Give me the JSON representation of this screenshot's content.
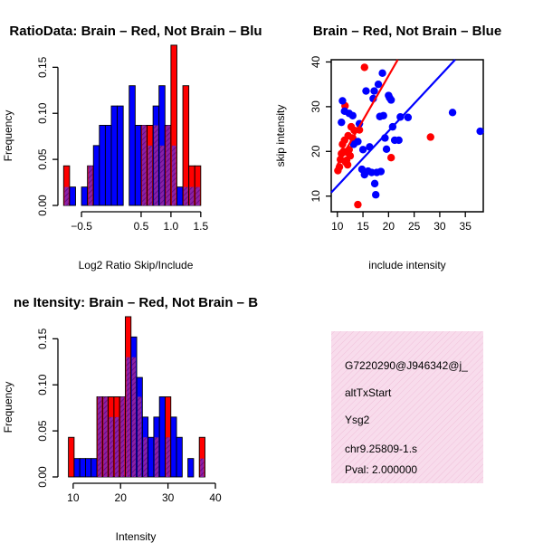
{
  "chart_data": [
    {
      "type": "bar",
      "subtype": "overlaid-histogram",
      "title": "RatioData: Brain – Red, Not Brain – Blu",
      "xlabel": "Log2 Ratio Skip/Include",
      "ylabel": "Frequency",
      "xlim": [
        -0.85,
        1.7
      ],
      "ylim": [
        0,
        0.17
      ],
      "x_ticks": [
        -0.5,
        0.5,
        1.0,
        1.5
      ],
      "x_tick_labels": [
        "−0.5",
        "0.5",
        "1.0",
        "1.5"
      ],
      "y_ticks": [
        0.0,
        0.05,
        0.1,
        0.15
      ],
      "y_tick_labels": [
        "0.00",
        "0.05",
        "0.10",
        "0.15"
      ],
      "bin_start": -0.8,
      "bin_width": 0.1,
      "series": [
        {
          "name": "Brain",
          "color": "#ff0000",
          "values": [
            0.043,
            0.0,
            0.0,
            0.0,
            0.043,
            0.0,
            0.0,
            0.0,
            0.0,
            0.0,
            0.0,
            0.0,
            0.0,
            0.087,
            0.087,
            0.087,
            0.065,
            0.087,
            0.174,
            0.0,
            0.13,
            0.043,
            0.043
          ]
        },
        {
          "name": "Not Brain",
          "color": "#0000ff",
          "values": [
            0.02,
            0.02,
            0.0,
            0.02,
            0.043,
            0.065,
            0.087,
            0.087,
            0.108,
            0.108,
            0.0,
            0.13,
            0.087,
            0.087,
            0.065,
            0.108,
            0.13,
            0.087,
            0.065,
            0.02,
            0.02,
            0.02,
            0.02
          ]
        }
      ]
    },
    {
      "type": "scatter",
      "title": "Brain – Red, Not Brain – Blue",
      "xlabel": "include intensity",
      "ylabel": "skip intensity",
      "xlim": [
        8.8,
        38.5
      ],
      "ylim": [
        6.5,
        40.5
      ],
      "x_ticks": [
        10,
        15,
        20,
        25,
        30,
        35
      ],
      "y_ticks": [
        10,
        20,
        30,
        40
      ],
      "series": [
        {
          "name": "Brain",
          "color": "#ff0000",
          "points": [
            [
              10.1,
              15.7
            ],
            [
              10.4,
              16.5
            ],
            [
              10.6,
              18.2
            ],
            [
              10.8,
              19.5
            ],
            [
              11.0,
              21.6
            ],
            [
              11.2,
              20.0
            ],
            [
              11.4,
              22.5
            ],
            [
              11.6,
              17.6
            ],
            [
              11.8,
              18.0
            ],
            [
              11.9,
              19.8
            ],
            [
              12.1,
              23.5
            ],
            [
              12.3,
              20.4
            ],
            [
              12.5,
              19.0
            ],
            [
              12.7,
              25.5
            ],
            [
              13.0,
              23.0
            ],
            [
              13.3,
              24.7
            ],
            [
              12.0,
              17.0
            ],
            [
              11.5,
              30.2
            ],
            [
              14.0,
              8.1
            ],
            [
              14.3,
              24.8
            ],
            [
              15.3,
              38.8
            ],
            [
              20.5,
              18.6
            ],
            [
              28.2,
              23.2
            ]
          ],
          "fit": [
            [
              10.0,
              17.0
            ],
            [
              21.8,
              40.5
            ]
          ]
        },
        {
          "name": "Not Brain",
          "color": "#0000ff",
          "points": [
            [
              10.8,
              26.5
            ],
            [
              11.0,
              31.3
            ],
            [
              11.4,
              29.0
            ],
            [
              12.3,
              28.5
            ],
            [
              13.0,
              28.0
            ],
            [
              13.2,
              21.6
            ],
            [
              14.0,
              22.2
            ],
            [
              14.3,
              26.2
            ],
            [
              14.8,
              16.0
            ],
            [
              15.0,
              20.4
            ],
            [
              15.3,
              14.8
            ],
            [
              15.6,
              33.5
            ],
            [
              16.0,
              15.6
            ],
            [
              16.3,
              21.0
            ],
            [
              16.7,
              15.3
            ],
            [
              17.0,
              31.8
            ],
            [
              17.2,
              33.5
            ],
            [
              17.3,
              12.8
            ],
            [
              17.7,
              15.3
            ],
            [
              17.5,
              10.3
            ],
            [
              18.0,
              35.0
            ],
            [
              18.3,
              27.8
            ],
            [
              18.5,
              15.5
            ],
            [
              18.8,
              37.5
            ],
            [
              19.0,
              28.0
            ],
            [
              19.3,
              23.0
            ],
            [
              19.6,
              20.5
            ],
            [
              20.0,
              32.5
            ],
            [
              20.2,
              32.0
            ],
            [
              20.5,
              31.5
            ],
            [
              20.8,
              25.5
            ],
            [
              21.2,
              22.5
            ],
            [
              22.0,
              22.5
            ],
            [
              22.3,
              27.7
            ],
            [
              23.8,
              27.6
            ],
            [
              32.5,
              28.7
            ],
            [
              37.9,
              24.5
            ]
          ],
          "fit": [
            [
              8.8,
              10.8
            ],
            [
              33.0,
              40.5
            ]
          ]
        }
      ]
    },
    {
      "type": "bar",
      "subtype": "overlaid-histogram",
      "title": "ne Itensity: Brain – Red, Not Brain – B",
      "xlabel": "Intensity",
      "ylabel": "Frequency",
      "xlim": [
        8.5,
        40.0
      ],
      "ylim": [
        0,
        0.17
      ],
      "x_ticks": [
        10,
        20,
        30,
        40
      ],
      "y_ticks": [
        0.0,
        0.05,
        0.1,
        0.15
      ],
      "y_tick_labels": [
        "0.00",
        "0.05",
        "0.10",
        "0.15"
      ],
      "bin_start": 9,
      "bin_width": 1.2,
      "series": [
        {
          "name": "Brain",
          "color": "#ff0000",
          "values": [
            0.043,
            0.0,
            0.0,
            0.0,
            0.0,
            0.087,
            0.087,
            0.087,
            0.087,
            0.087,
            0.174,
            0.13,
            0.087,
            0.043,
            0.0,
            0.043,
            0.0,
            0.087,
            0.0,
            0.0,
            0.0,
            0.0,
            0.0,
            0.043
          ]
        },
        {
          "name": "Not Brain",
          "color": "#0000ff",
          "values": [
            0.0,
            0.02,
            0.02,
            0.02,
            0.02,
            0.087,
            0.087,
            0.065,
            0.065,
            0.087,
            0.13,
            0.152,
            0.108,
            0.065,
            0.043,
            0.065,
            0.087,
            0.043,
            0.065,
            0.043,
            0.0,
            0.02,
            0.0,
            0.02
          ]
        }
      ]
    }
  ],
  "info_box": {
    "lines": [
      "G7220290@J946342@j_",
      "altTxStart",
      "Ysg2",
      "chr9.25809-1.s"
    ],
    "pval": "Pval: 2.000000",
    "pval_color": "#cc0000",
    "bg_color": "#f8dcec"
  }
}
